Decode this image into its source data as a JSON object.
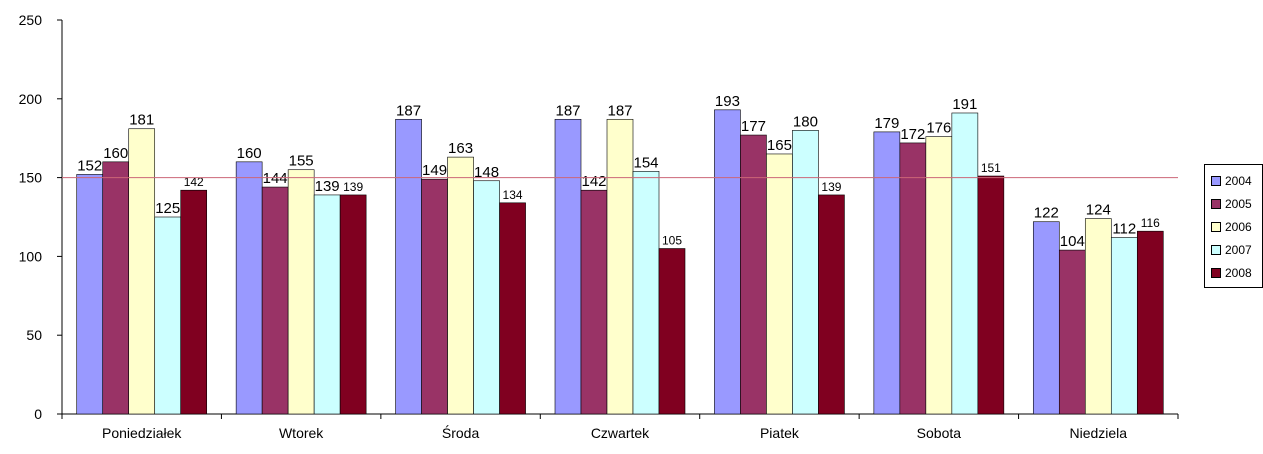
{
  "chart_data": {
    "type": "bar",
    "categories": [
      "Poniedziałek",
      "Wtorek",
      "Środa",
      "Czwartek",
      "Piatek",
      "Sobota",
      "Niedziela"
    ],
    "series": [
      {
        "name": "2004",
        "color": "#9999ff",
        "values": [
          152,
          160,
          187,
          187,
          193,
          179,
          122
        ]
      },
      {
        "name": "2005",
        "color": "#993366",
        "values": [
          160,
          144,
          149,
          142,
          177,
          172,
          104
        ]
      },
      {
        "name": "2006",
        "color": "#ffffcc",
        "values": [
          181,
          155,
          163,
          187,
          165,
          176,
          124
        ]
      },
      {
        "name": "2007",
        "color": "#ccffff",
        "values": [
          125,
          139,
          148,
          154,
          180,
          191,
          112
        ]
      },
      {
        "name": "2008",
        "color": "#800020",
        "values": [
          142,
          139,
          134,
          105,
          139,
          151,
          116
        ]
      }
    ],
    "ylim": [
      0,
      250
    ],
    "yticks": [
      0,
      50,
      100,
      150,
      200,
      250
    ],
    "reference_line": {
      "value": 150,
      "color": "#cc6677"
    },
    "legend_position": "right",
    "grid": false
  }
}
